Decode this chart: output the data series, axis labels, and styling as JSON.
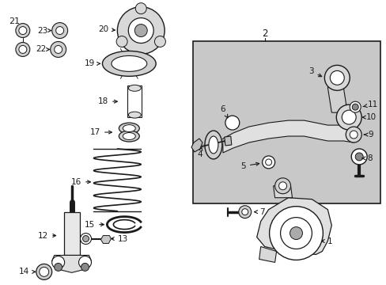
{
  "bg_color": "#ffffff",
  "figsize": [
    4.89,
    3.6
  ],
  "dpi": 100,
  "lc": "#1a1a1a",
  "gray": "#c8c8c8",
  "font_size": 7.5
}
